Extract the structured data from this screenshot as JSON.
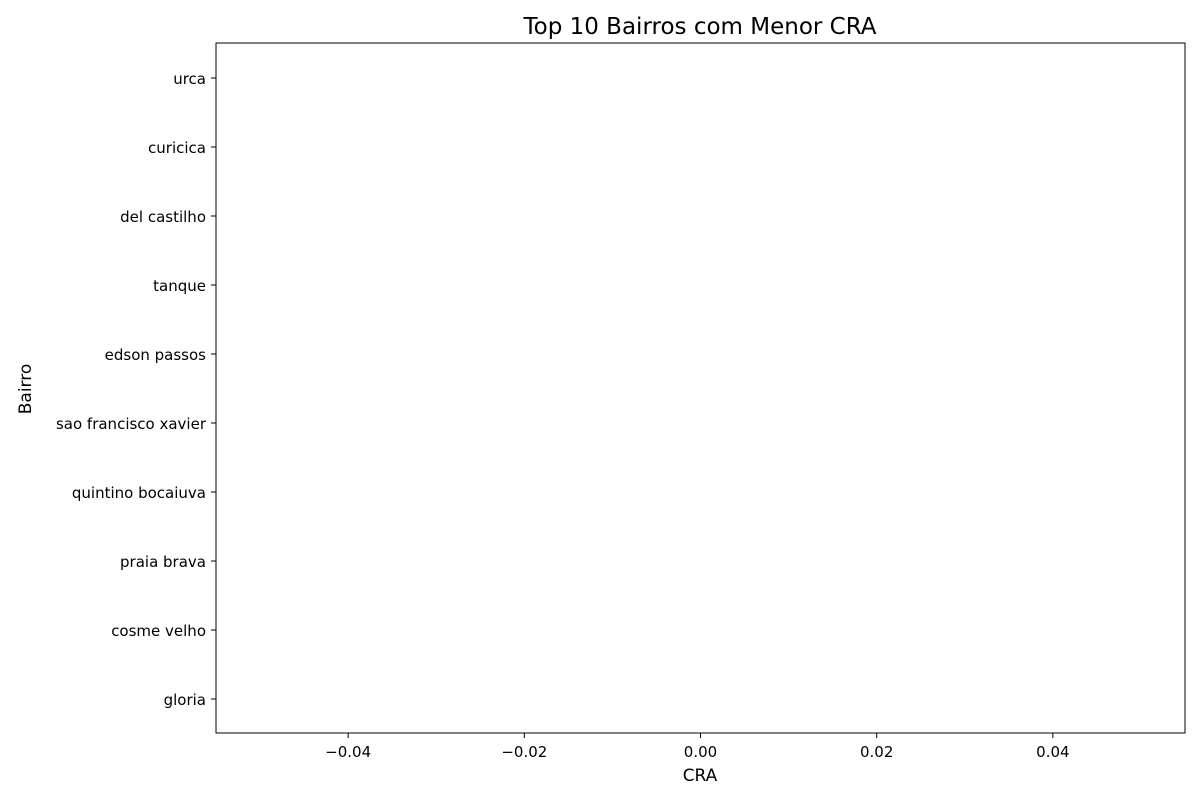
{
  "chart_data": {
    "type": "bar",
    "orientation": "horizontal",
    "title": "Top 10 Bairros com Menor CRA",
    "xlabel": "CRA",
    "ylabel": "Bairro",
    "categories": [
      "urca",
      "curicica",
      "del castilho",
      "tanque",
      "edson passos",
      "sao francisco xavier",
      "quintino bocaiuva",
      "praia brava",
      "cosme velho",
      "gloria"
    ],
    "values": [
      0,
      0,
      0,
      0,
      0,
      0,
      0,
      0,
      0,
      0
    ],
    "xlim": [
      -0.055,
      0.055
    ],
    "xticks": [
      -0.04,
      -0.02,
      0.0,
      0.02,
      0.04
    ],
    "xtick_labels": [
      "−0.04",
      "−0.02",
      "0.00",
      "0.02",
      "0.04"
    ],
    "grid": false,
    "legend": "none",
    "bar_color": "#1f77b4"
  }
}
